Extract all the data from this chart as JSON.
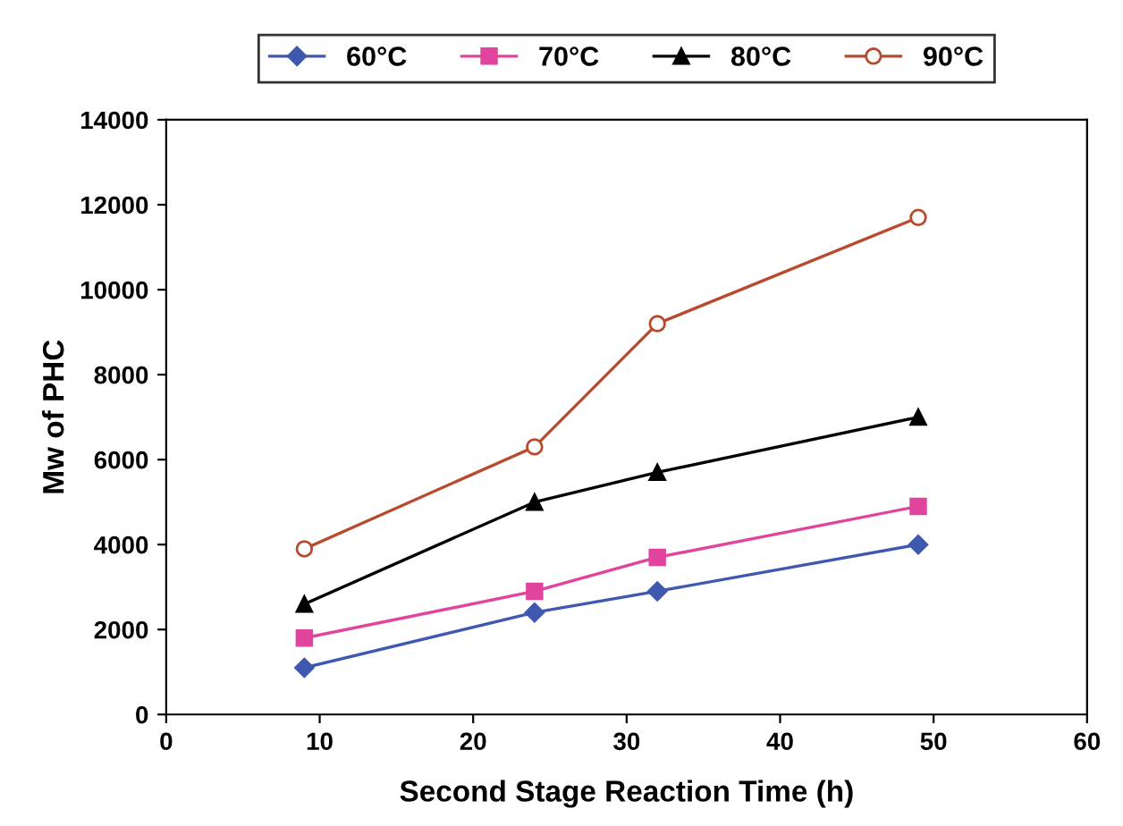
{
  "chart_data": {
    "type": "line",
    "xlabel": "Second Stage Reaction Time (h)",
    "ylabel": "Mw of PHC",
    "x": [
      9,
      24,
      32,
      49
    ],
    "series": [
      {
        "name": "60°C",
        "color": "#3f58b0",
        "marker": "diamond",
        "values": [
          1100,
          2400,
          2900,
          4000
        ]
      },
      {
        "name": "70°C",
        "color": "#e0449c",
        "marker": "square",
        "values": [
          1800,
          2900,
          3700,
          4900
        ]
      },
      {
        "name": "80°C",
        "color": "#000000",
        "marker": "triangle",
        "values": [
          2600,
          5000,
          5700,
          7000
        ]
      },
      {
        "name": "90°C",
        "color": "#b84a2e",
        "marker": "circle",
        "values": [
          3900,
          6300,
          9200,
          11700
        ]
      }
    ],
    "xlim": [
      0,
      60
    ],
    "xticks": [
      0,
      10,
      20,
      30,
      40,
      50,
      60
    ],
    "ylim": [
      0,
      14000
    ],
    "yticks": [
      0,
      2000,
      4000,
      6000,
      8000,
      10000,
      12000,
      14000
    ],
    "grid": false,
    "legend": "top"
  }
}
